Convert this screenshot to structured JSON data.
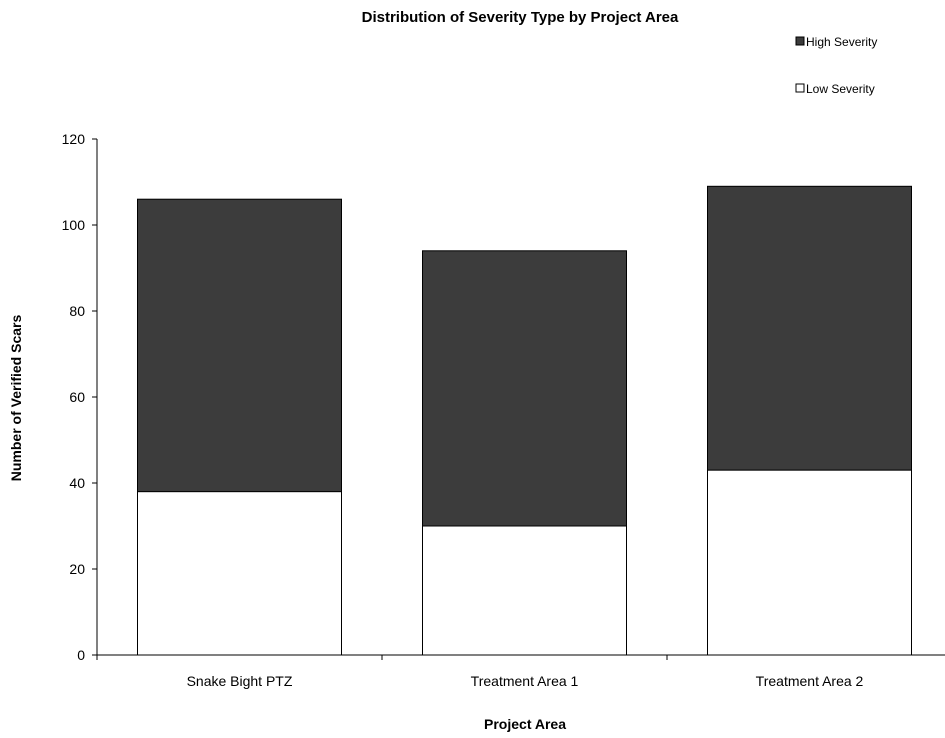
{
  "chart_data": {
    "type": "bar",
    "stacked": true,
    "title": "Distribution of Severity Type by Project Area",
    "xlabel": "Project Area",
    "ylabel": "Number of Verified Scars",
    "categories": [
      "Snake Bight PTZ",
      "Treatment Area 1",
      "Treatment Area 2"
    ],
    "series": [
      {
        "name": "Low Severity",
        "values": [
          38,
          30,
          43
        ],
        "color": "#ffffff"
      },
      {
        "name": "High Severity",
        "values": [
          68,
          64,
          66
        ],
        "color": "#3c3c3c"
      }
    ],
    "legend": [
      {
        "name": "High Severity",
        "color": "#3c3c3c"
      },
      {
        "name": "Low Severity",
        "color": "#ffffff"
      }
    ],
    "ylim": [
      0,
      120
    ],
    "yticks": [
      "0",
      "20",
      "40",
      "60",
      "80",
      "100",
      "120"
    ],
    "grid": false,
    "legend_position": "top-right"
  }
}
